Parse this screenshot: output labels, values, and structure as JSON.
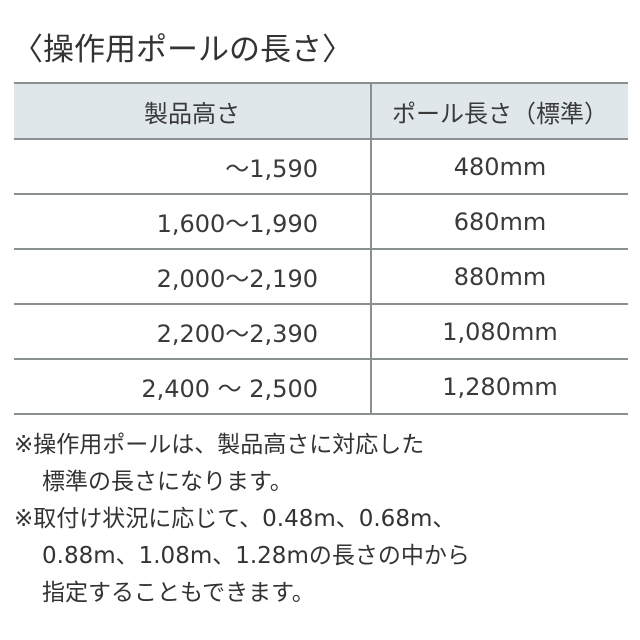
{
  "title": "〈操作用ポールの長さ〉",
  "table": {
    "headers": [
      "製品高さ",
      "ポール長さ（標準）"
    ],
    "rows": [
      {
        "height": "～1,590",
        "pole": "480mm"
      },
      {
        "height": "1,600～1,990",
        "pole": "680mm"
      },
      {
        "height": "2,000～2,190",
        "pole": "880mm"
      },
      {
        "height": "2,200～2,390",
        "pole": "1,080mm"
      },
      {
        "height": "2,400 ～ 2,500",
        "pole": "1,280mm"
      }
    ]
  },
  "notes": [
    "※操作用ポールは、製品高さに対応した",
    "標準の長さになります。",
    "※取付け状況に応じて、0.48m、0.68m、",
    "0.88m、1.08m、1.28mの長さの中から",
    "指定することもできます。"
  ]
}
